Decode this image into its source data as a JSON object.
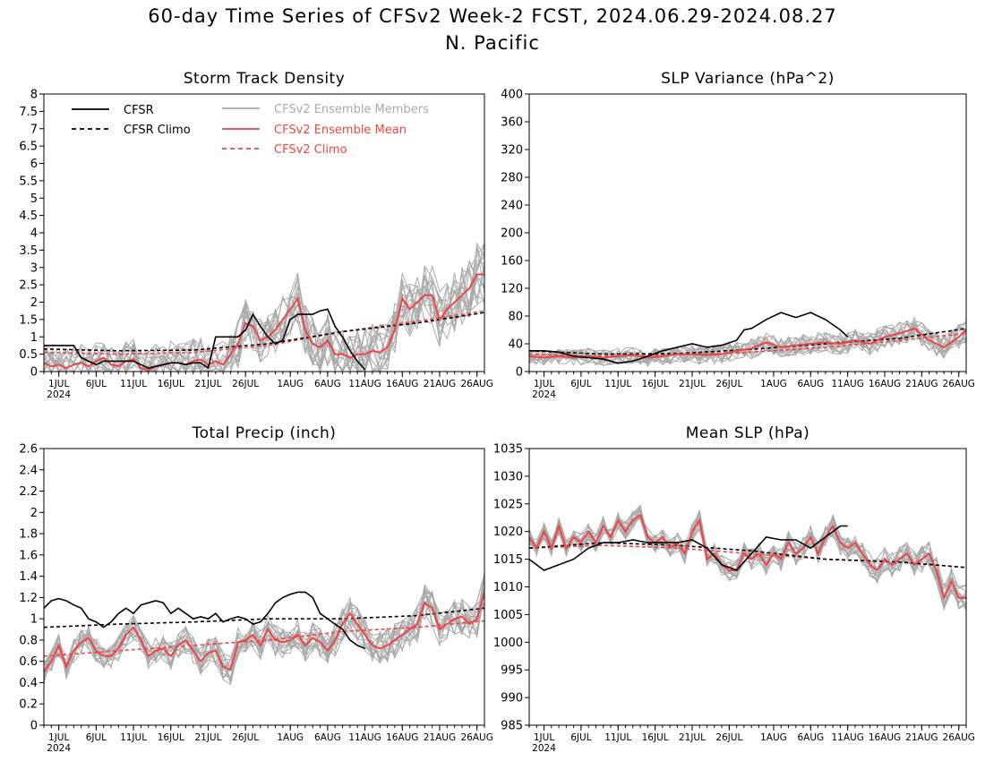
{
  "figure": {
    "title": "60-day Time Series of CFSv2 Week-2 FCST, 2024.06.29-2024.08.27",
    "subtitle": "N. Pacific"
  },
  "legend": [
    {
      "label": "CFSR",
      "color": "#000000",
      "dash": false
    },
    {
      "label": "CFSR Climo",
      "color": "#000000",
      "dash": true
    },
    {
      "label": "CFSv2 Ensemble Members",
      "color": "#aaaaaa",
      "dash": false
    },
    {
      "label": "CFSv2 Ensemble Mean",
      "color": "#ee4444",
      "dash": false
    },
    {
      "label": "CFSv2 Climo",
      "color": "#ee4444",
      "dash": true
    }
  ],
  "x_ticks": {
    "days": [
      2,
      7,
      12,
      17,
      22,
      27,
      33,
      38,
      43,
      48,
      53,
      58
    ],
    "labels": [
      "1JUL",
      "6JUL",
      "11JUL",
      "16JUL",
      "21JUL",
      "26JUL",
      "1AUG",
      "6AUG",
      "11AUG",
      "16AUG",
      "21AUG",
      "26AUG"
    ],
    "year_label": "2024",
    "day_range": [
      0,
      59
    ]
  },
  "chart_data": [
    {
      "type": "line",
      "title": "Storm Track Density",
      "ylim": [
        0,
        8
      ],
      "yticks": [
        "0",
        "0.5",
        "1",
        "1.5",
        "2",
        "2.5",
        "3",
        "3.5",
        "4",
        "4.5",
        "5",
        "5.5",
        "6",
        "6.5",
        "7",
        "7.5",
        "8"
      ],
      "show_legend": true,
      "series": [
        {
          "name": "CFSR",
          "x": [
            0,
            2,
            4,
            5,
            6,
            7,
            8,
            9,
            10,
            12,
            13,
            14,
            15,
            16,
            17,
            18,
            19,
            20,
            21,
            22,
            23,
            24,
            25,
            26,
            27,
            28,
            29,
            30,
            31,
            32,
            33,
            34,
            35,
            36,
            37,
            38,
            39,
            40,
            41,
            42,
            43
          ],
          "values": [
            0.75,
            0.75,
            0.75,
            0.4,
            0.3,
            0.2,
            0.3,
            0.3,
            0.3,
            0.3,
            0.2,
            0.1,
            0.15,
            0.2,
            0.25,
            0.25,
            0.2,
            0.25,
            0.25,
            0.1,
            1.0,
            1.0,
            1.0,
            1.0,
            1.2,
            1.65,
            1.3,
            1.0,
            0.8,
            0.9,
            1.5,
            1.65,
            1.65,
            1.65,
            1.75,
            1.8,
            1.3,
            1.0,
            0.6,
            0.3,
            0.05
          ]
        },
        {
          "name": "CFSR Climo",
          "x": [
            0,
            10,
            20,
            30,
            40,
            50,
            59
          ],
          "values": [
            0.65,
            0.6,
            0.62,
            0.8,
            1.15,
            1.4,
            1.7
          ]
        },
        {
          "name": "CFSv2 Ensemble Mean",
          "x": [
            0,
            1,
            2,
            3,
            4,
            5,
            6,
            7,
            8,
            9,
            10,
            11,
            12,
            13,
            14,
            15,
            16,
            17,
            18,
            19,
            20,
            21,
            22,
            23,
            24,
            25,
            26,
            27,
            28,
            29,
            30,
            31,
            32,
            33,
            34,
            35,
            36,
            37,
            38,
            39,
            40,
            41,
            42,
            43,
            44,
            45,
            46,
            47,
            48,
            49,
            50,
            51,
            52,
            53,
            54,
            55,
            56,
            57,
            58,
            59
          ],
          "values": [
            0.25,
            0.15,
            0.2,
            0.1,
            0.2,
            0.25,
            0.15,
            0.3,
            0.4,
            0.2,
            0.15,
            0.3,
            0.35,
            0.1,
            0.05,
            0.15,
            0.2,
            0.25,
            0.25,
            0.2,
            0.3,
            0.35,
            0.2,
            0.3,
            0.2,
            0.5,
            0.8,
            1.4,
            1.3,
            0.9,
            1.0,
            1.2,
            1.5,
            1.8,
            2.1,
            1.2,
            0.8,
            0.7,
            0.9,
            0.5,
            0.5,
            0.4,
            0.5,
            0.5,
            0.6,
            0.55,
            0.7,
            1.2,
            2.1,
            1.8,
            2.0,
            2.2,
            2.2,
            1.5,
            1.8,
            2.0,
            2.2,
            2.4,
            2.8,
            2.8
          ]
        },
        {
          "name": "CFSv2 Climo",
          "x": [
            0,
            10,
            20,
            30,
            40,
            50,
            59
          ],
          "values": [
            0.55,
            0.5,
            0.55,
            0.75,
            1.15,
            1.45,
            1.75
          ]
        }
      ],
      "ensemble": {
        "count": 16,
        "spread": 0.9
      }
    },
    {
      "type": "line",
      "title": "SLP Variance (hPa^2)",
      "ylim": [
        0,
        400
      ],
      "yticks": [
        "0",
        "40",
        "80",
        "120",
        "160",
        "200",
        "240",
        "280",
        "320",
        "360",
        "400"
      ],
      "show_legend": false,
      "series": [
        {
          "name": "CFSR",
          "x": [
            0,
            2,
            4,
            6,
            8,
            10,
            12,
            14,
            16,
            18,
            20,
            22,
            24,
            26,
            28,
            29,
            30,
            32,
            34,
            36,
            38,
            40,
            42,
            43
          ],
          "values": [
            30,
            30,
            28,
            22,
            20,
            18,
            12,
            15,
            22,
            30,
            35,
            40,
            35,
            38,
            45,
            60,
            62,
            75,
            85,
            78,
            85,
            75,
            60,
            50
          ]
        },
        {
          "name": "CFSR Climo",
          "x": [
            0,
            10,
            20,
            30,
            40,
            50,
            59
          ],
          "values": [
            30,
            25,
            26,
            32,
            40,
            48,
            62
          ]
        },
        {
          "name": "CFSv2 Ensemble Mean",
          "x": [
            0,
            2,
            4,
            6,
            8,
            10,
            12,
            14,
            16,
            18,
            20,
            22,
            24,
            26,
            28,
            30,
            32,
            34,
            36,
            38,
            40,
            42,
            44,
            46,
            48,
            50,
            52,
            54,
            56,
            58,
            59
          ],
          "values": [
            22,
            20,
            22,
            20,
            22,
            20,
            22,
            24,
            20,
            22,
            25,
            25,
            24,
            25,
            30,
            33,
            42,
            35,
            38,
            40,
            42,
            40,
            45,
            40,
            50,
            55,
            62,
            45,
            35,
            50,
            60
          ]
        },
        {
          "name": "CFSv2 Climo",
          "x": [
            0,
            10,
            20,
            30,
            40,
            50,
            59
          ],
          "values": [
            25,
            22,
            24,
            28,
            35,
            45,
            55
          ]
        }
      ],
      "ensemble": {
        "count": 16,
        "spread": 18
      }
    },
    {
      "type": "line",
      "title": "Total Precip (inch)",
      "ylim": [
        0,
        2.6
      ],
      "yticks": [
        "0",
        "0.2",
        "0.4",
        "0.6",
        "0.8",
        "1",
        "1.2",
        "1.4",
        "1.6",
        "1.8",
        "2",
        "2.2",
        "2.4",
        "2.6"
      ],
      "show_legend": false,
      "series": [
        {
          "name": "CFSR",
          "x": [
            0,
            1,
            2,
            3,
            4,
            5,
            6,
            7,
            8,
            9,
            10,
            11,
            12,
            13,
            14,
            15,
            16,
            17,
            18,
            19,
            20,
            21,
            22,
            23,
            24,
            25,
            26,
            27,
            28,
            29,
            30,
            31,
            32,
            33,
            34,
            35,
            36,
            37,
            38,
            39,
            40,
            41,
            42,
            43
          ],
          "values": [
            1.1,
            1.17,
            1.19,
            1.17,
            1.13,
            1.1,
            1.0,
            0.97,
            0.92,
            0.97,
            1.05,
            1.1,
            1.05,
            1.13,
            1.15,
            1.17,
            1.15,
            1.05,
            1.1,
            1.05,
            1.0,
            1.02,
            1.0,
            1.05,
            0.97,
            1.0,
            1.02,
            1.0,
            0.95,
            0.97,
            1.05,
            1.15,
            1.2,
            1.23,
            1.25,
            1.25,
            1.2,
            1.05,
            1.0,
            0.95,
            0.9,
            0.8,
            0.75,
            0.72
          ]
        },
        {
          "name": "CFSR Climo",
          "x": [
            0,
            10,
            20,
            30,
            40,
            50,
            59
          ],
          "values": [
            0.92,
            0.95,
            0.97,
            1.0,
            1.0,
            1.03,
            1.1
          ]
        },
        {
          "name": "CFSv2 Ensemble Mean",
          "x": [
            0,
            1,
            2,
            3,
            4,
            5,
            6,
            7,
            8,
            9,
            10,
            11,
            12,
            13,
            14,
            15,
            16,
            17,
            18,
            19,
            20,
            21,
            22,
            23,
            24,
            25,
            26,
            27,
            28,
            29,
            30,
            31,
            32,
            33,
            34,
            35,
            36,
            37,
            38,
            39,
            40,
            41,
            42,
            43,
            44,
            45,
            46,
            47,
            48,
            49,
            50,
            51,
            52,
            53,
            54,
            55,
            56,
            57,
            58,
            59
          ],
          "values": [
            0.5,
            0.6,
            0.75,
            0.55,
            0.7,
            0.78,
            0.82,
            0.7,
            0.65,
            0.65,
            0.72,
            0.85,
            0.92,
            0.8,
            0.65,
            0.7,
            0.72,
            0.65,
            0.75,
            0.8,
            0.7,
            0.6,
            0.68,
            0.7,
            0.55,
            0.52,
            0.78,
            0.8,
            0.85,
            0.75,
            0.9,
            0.8,
            0.78,
            0.8,
            0.85,
            0.75,
            0.82,
            0.78,
            0.7,
            0.8,
            0.95,
            1.05,
            0.95,
            0.85,
            0.75,
            0.72,
            0.75,
            0.8,
            0.85,
            0.9,
            0.95,
            1.15,
            1.1,
            0.9,
            0.95,
            1.0,
            1.02,
            0.95,
            1.0,
            1.25
          ]
        },
        {
          "name": "CFSv2 Climo",
          "x": [
            0,
            10,
            20,
            30,
            40,
            50,
            59
          ],
          "values": [
            0.65,
            0.7,
            0.75,
            0.8,
            0.88,
            0.92,
            0.98
          ]
        }
      ],
      "ensemble": {
        "count": 16,
        "spread": 0.18
      }
    },
    {
      "type": "line",
      "title": "Mean SLP (hPa)",
      "ylim": [
        985,
        1035
      ],
      "yticks": [
        "985",
        "990",
        "995",
        "1000",
        "1005",
        "1010",
        "1015",
        "1020",
        "1025",
        "1030",
        "1035"
      ],
      "show_legend": false,
      "series": [
        {
          "name": "CFSR",
          "x": [
            0,
            2,
            4,
            6,
            8,
            10,
            12,
            14,
            16,
            18,
            20,
            22,
            24,
            26,
            28,
            30,
            32,
            34,
            36,
            38,
            40,
            42,
            43
          ],
          "values": [
            1015,
            1013,
            1014,
            1015,
            1017,
            1018,
            1018,
            1018.5,
            1018,
            1018,
            1018,
            1018.5,
            1017,
            1014,
            1013,
            1016,
            1019,
            1018.5,
            1018.5,
            1017,
            1019,
            1021,
            1021
          ]
        },
        {
          "name": "CFSR Climo",
          "x": [
            0,
            10,
            20,
            30,
            40,
            50,
            59
          ],
          "values": [
            1017,
            1018,
            1017.5,
            1016.5,
            1015,
            1014.5,
            1013.5
          ]
        },
        {
          "name": "CFSv2 Ensemble Mean",
          "x": [
            0,
            1,
            2,
            3,
            4,
            5,
            6,
            7,
            8,
            9,
            10,
            11,
            12,
            13,
            14,
            15,
            16,
            17,
            18,
            19,
            20,
            21,
            22,
            23,
            24,
            25,
            26,
            27,
            28,
            29,
            30,
            31,
            32,
            33,
            34,
            35,
            36,
            37,
            38,
            39,
            40,
            41,
            42,
            43,
            44,
            45,
            46,
            47,
            48,
            49,
            50,
            51,
            52,
            53,
            54,
            55,
            56,
            57,
            58,
            59
          ],
          "values": [
            1019,
            1017,
            1020,
            1017,
            1021,
            1017,
            1019,
            1018,
            1020,
            1018,
            1021,
            1019,
            1022,
            1020,
            1022,
            1023,
            1019,
            1018,
            1019,
            1017,
            1018,
            1016,
            1020,
            1022,
            1015,
            1016,
            1014,
            1013,
            1013,
            1016,
            1015,
            1016,
            1014,
            1016,
            1015,
            1018,
            1016,
            1017,
            1019,
            1016,
            1019,
            1021,
            1018,
            1017,
            1018,
            1016,
            1014,
            1013,
            1015,
            1014,
            1015,
            1016,
            1014,
            1015,
            1016,
            1013,
            1008,
            1011,
            1008,
            1008
          ]
        },
        {
          "name": "CFSv2 Climo",
          "x": [
            0,
            10,
            20,
            30,
            40,
            50,
            59
          ],
          "values": [
            1017,
            1017.5,
            1017,
            1016,
            1015,
            1014.5,
            1013.5
          ]
        }
      ],
      "ensemble": {
        "count": 16,
        "spread": 2.5
      }
    }
  ]
}
